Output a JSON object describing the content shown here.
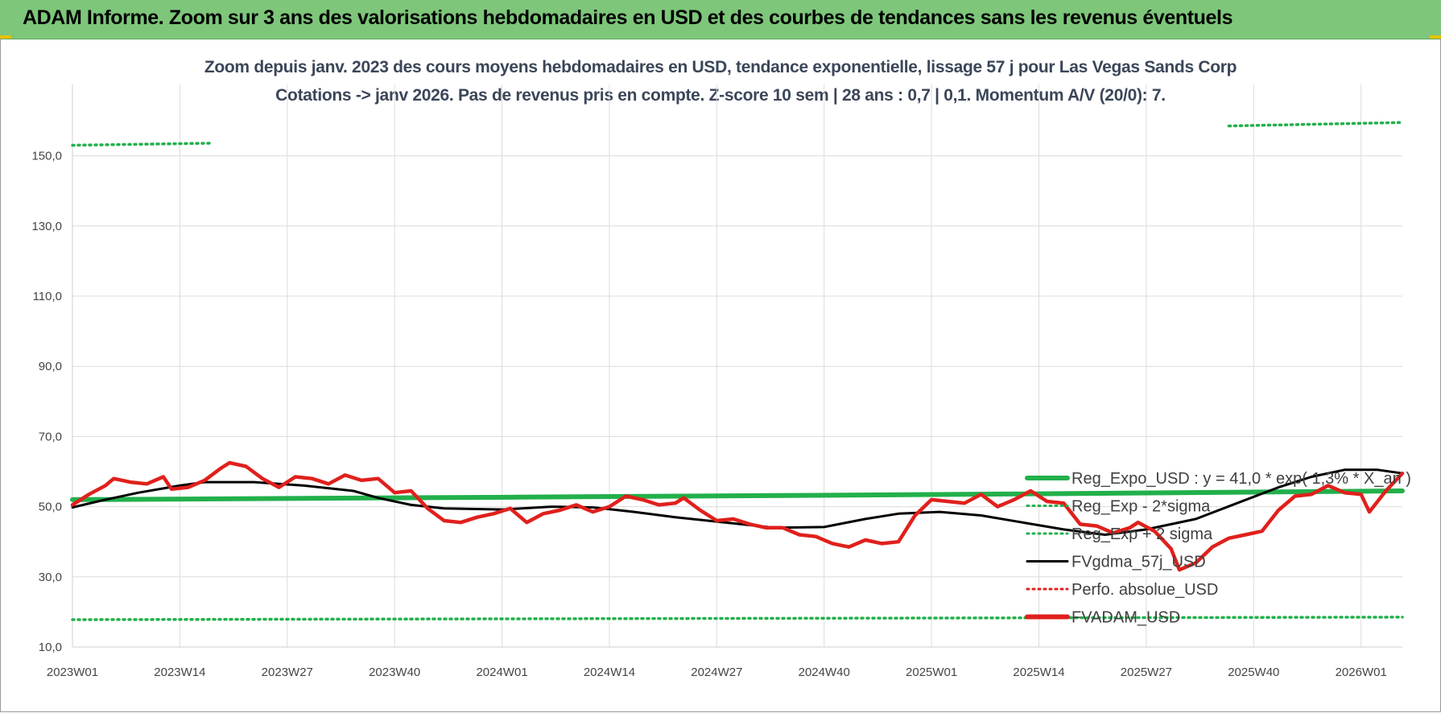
{
  "banner": {
    "title": "ADAM Informe. Zoom sur 3 ans des valorisations hebdomadaires en USD et des courbes de tendances sans les revenus éventuels"
  },
  "chart_data": {
    "type": "line",
    "title_line1": "Zoom depuis janv. 2023 des cours moyens hebdomadaires en USD, tendance exponentielle, lissage 57 j pour Las Vegas Sands Corp",
    "title_line2": "Cotations -> janv 2026. Pas de revenus pris en compte. Z-score 10 sem | 28 ans : 0,7 | 0,1. Momentum A/V (20/0): 7.",
    "ylim": [
      10,
      160
    ],
    "y_ticks": [
      "10,0",
      "30,0",
      "50,0",
      "70,0",
      "90,0",
      "110,0",
      "130,0",
      "150,0"
    ],
    "x_ticks": [
      "2023W01",
      "2023W14",
      "2023W27",
      "2023W40",
      "2024W01",
      "2024W14",
      "2024W27",
      "2024W40",
      "2025W01",
      "2025W14",
      "2025W27",
      "2025W40",
      "2026W01"
    ],
    "x_range_weeks": [
      0,
      161
    ],
    "grid": true,
    "legend_position": "right",
    "legend": [
      {
        "label": "Reg_Expo_USD : y = 41,0 * exp( 1,3% * X_an )",
        "color": "#22b04b",
        "style": "thick"
      },
      {
        "label": "Reg_Exp - 2*sigma",
        "color": "#22b04b",
        "style": "dotted"
      },
      {
        "label": "Reg_Exp + 2 sigma",
        "color": "#22b04b",
        "style": "dotted"
      },
      {
        "label": "FVgdma_57j_USD",
        "color": "#000000",
        "style": "solid"
      },
      {
        "label": "Perfo. absolue_USD",
        "color": "#e0201c",
        "style": "dotted"
      },
      {
        "label": "FVADAM_USD",
        "color": "#e0201c",
        "style": "thick"
      }
    ],
    "series": [
      {
        "name": "Reg_Expo_USD : y = 41,0 * exp( 1,3% * X_an )",
        "points": [
          [
            0,
            52.0
          ],
          [
            54,
            52.7
          ],
          [
            108,
            53.5
          ],
          [
            161,
            54.5
          ]
        ]
      },
      {
        "name": "Reg_Exp - 2*sigma",
        "points": [
          [
            0,
            17.8
          ],
          [
            161,
            18.5
          ]
        ]
      },
      {
        "name": "Reg_Exp + 2 sigma",
        "points": [
          [
            0,
            153.0
          ],
          [
            17,
            153.6
          ]
        ]
      },
      {
        "name": "Reg_Exp + 2 sigma (end)",
        "points": [
          [
            140,
            158.5
          ],
          [
            161,
            159.5
          ]
        ]
      },
      {
        "name": "FVgdma_57j_USD",
        "points": [
          [
            0,
            49.8
          ],
          [
            4,
            52.0
          ],
          [
            8,
            54.0
          ],
          [
            13,
            56.0
          ],
          [
            16,
            57.0
          ],
          [
            22,
            57.0
          ],
          [
            28,
            56.0
          ],
          [
            34,
            54.5
          ],
          [
            37,
            52.5
          ],
          [
            41,
            50.5
          ],
          [
            45,
            49.5
          ],
          [
            52,
            49.2
          ],
          [
            58,
            50.0
          ],
          [
            63,
            49.8
          ],
          [
            68,
            48.5
          ],
          [
            73,
            47.0
          ],
          [
            79,
            45.5
          ],
          [
            85,
            44.0
          ],
          [
            91,
            44.2
          ],
          [
            96,
            46.5
          ],
          [
            100,
            48.0
          ],
          [
            105,
            48.5
          ],
          [
            110,
            47.5
          ],
          [
            115,
            45.5
          ],
          [
            120,
            43.5
          ],
          [
            125,
            42.0
          ],
          [
            130,
            43.5
          ],
          [
            136,
            46.5
          ],
          [
            141,
            51.0
          ],
          [
            146,
            55.5
          ],
          [
            150,
            58.5
          ],
          [
            154,
            60.5
          ],
          [
            158,
            60.5
          ],
          [
            161,
            59.5
          ]
        ]
      },
      {
        "name": "FVADAM_USD",
        "points": [
          [
            0,
            50.5
          ],
          [
            2,
            53.5
          ],
          [
            4,
            56.0
          ],
          [
            5,
            58.0
          ],
          [
            7,
            57.0
          ],
          [
            9,
            56.5
          ],
          [
            11,
            58.5
          ],
          [
            12,
            55.0
          ],
          [
            14,
            55.5
          ],
          [
            16,
            57.5
          ],
          [
            18,
            61.0
          ],
          [
            19,
            62.5
          ],
          [
            21,
            61.5
          ],
          [
            23,
            58.0
          ],
          [
            25,
            55.5
          ],
          [
            27,
            58.5
          ],
          [
            29,
            58.0
          ],
          [
            31,
            56.5
          ],
          [
            33,
            59.0
          ],
          [
            35,
            57.5
          ],
          [
            37,
            58.0
          ],
          [
            39,
            54.0
          ],
          [
            41,
            54.5
          ],
          [
            43,
            49.5
          ],
          [
            45,
            46.0
          ],
          [
            47,
            45.5
          ],
          [
            49,
            47.0
          ],
          [
            51,
            48.0
          ],
          [
            53,
            49.5
          ],
          [
            55,
            45.5
          ],
          [
            57,
            48.0
          ],
          [
            59,
            49.0
          ],
          [
            61,
            50.5
          ],
          [
            63,
            48.5
          ],
          [
            65,
            50.0
          ],
          [
            67,
            53.0
          ],
          [
            69,
            52.0
          ],
          [
            71,
            50.5
          ],
          [
            73,
            51.0
          ],
          [
            74,
            52.5
          ],
          [
            76,
            49.0
          ],
          [
            78,
            46.0
          ],
          [
            80,
            46.5
          ],
          [
            82,
            45.0
          ],
          [
            84,
            44.0
          ],
          [
            86,
            44.0
          ],
          [
            88,
            42.0
          ],
          [
            90,
            41.5
          ],
          [
            92,
            39.5
          ],
          [
            94,
            38.5
          ],
          [
            96,
            40.5
          ],
          [
            98,
            39.5
          ],
          [
            100,
            40.0
          ],
          [
            102,
            47.5
          ],
          [
            104,
            52.0
          ],
          [
            106,
            51.5
          ],
          [
            108,
            51.0
          ],
          [
            110,
            53.5
          ],
          [
            112,
            50.0
          ],
          [
            114,
            52.0
          ],
          [
            116,
            54.5
          ],
          [
            118,
            51.5
          ],
          [
            120,
            51.0
          ],
          [
            122,
            45.0
          ],
          [
            124,
            44.5
          ],
          [
            126,
            42.5
          ],
          [
            128,
            44.0
          ],
          [
            129,
            45.5
          ],
          [
            131,
            43.0
          ],
          [
            133,
            38.0
          ],
          [
            134,
            32.0
          ],
          [
            136,
            34.0
          ],
          [
            138,
            38.5
          ],
          [
            140,
            41.0
          ],
          [
            142,
            42.0
          ],
          [
            144,
            43.0
          ],
          [
            146,
            49.0
          ],
          [
            148,
            53.0
          ],
          [
            150,
            53.5
          ],
          [
            152,
            56.0
          ],
          [
            154,
            54.0
          ],
          [
            156,
            53.5
          ],
          [
            157,
            48.5
          ],
          [
            159,
            54.5
          ],
          [
            161,
            59.5
          ]
        ]
      }
    ]
  }
}
